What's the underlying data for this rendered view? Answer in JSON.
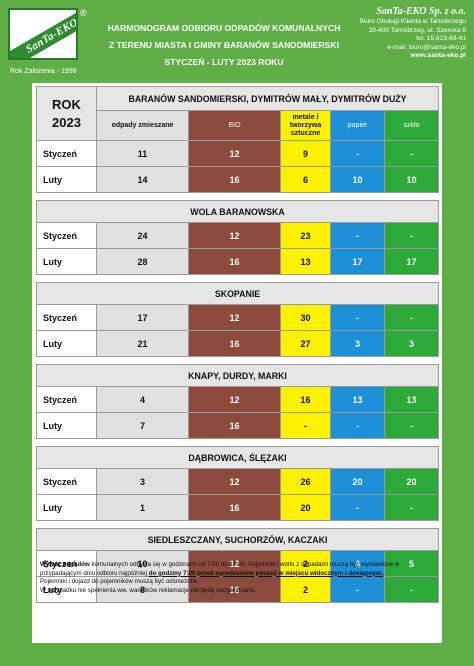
{
  "logo": {
    "brand": "SanTa-EKO",
    "registered": "®",
    "founded": "Rok Założenia - 1998"
  },
  "title": {
    "line1": "HARMONOGRAM ODBIORU ODPADÓW KOMUNALNYCH",
    "line2": "Z TERENU MIASTA I GMINY BARANÓW SANDOMIERSKI",
    "line3": "STYCZEŃ - LUTY 2023 ROKU"
  },
  "company": {
    "name": "SanTa-EKO Sp. z o.o.",
    "line1": "Biuro Obsługi Klienta w Tarnobrzegu",
    "line2": "39-400 Tarnobrzeg, ul. Szeroka 8",
    "line3": "tel. 15 823-69-41",
    "line4": "e-mail: biuro@santa-eko.pl",
    "url": "www.santa-eko.pl"
  },
  "table": {
    "year_label": "ROK",
    "year": "2023",
    "headers": {
      "mixed": "odpady zmieszane",
      "bio": "BIO",
      "metal": "metale i tworzywa sztuczne",
      "paper": "papier",
      "glass": "szkło"
    },
    "areas": [
      {
        "name": "BARANÓW SANDOMIERSKI, DYMITRÓW MAŁY, DYMITRÓW DUŻY",
        "rows": [
          {
            "month": "Styczeń",
            "mixed": "11",
            "bio": "12",
            "metal": "9",
            "paper": "-",
            "glass": "-"
          },
          {
            "month": "Luty",
            "mixed": "14",
            "bio": "16",
            "metal": "6",
            "paper": "10",
            "glass": "10"
          }
        ]
      },
      {
        "name": "WOLA BARANOWSKA",
        "rows": [
          {
            "month": "Styczeń",
            "mixed": "24",
            "bio": "12",
            "metal": "23",
            "paper": "-",
            "glass": "-"
          },
          {
            "month": "Luty",
            "mixed": "28",
            "bio": "16",
            "metal": "13",
            "paper": "17",
            "glass": "17"
          }
        ]
      },
      {
        "name": "SKOPANIE",
        "rows": [
          {
            "month": "Styczeń",
            "mixed": "17",
            "bio": "12",
            "metal": "30",
            "paper": "-",
            "glass": "-"
          },
          {
            "month": "Luty",
            "mixed": "21",
            "bio": "16",
            "metal": "27",
            "paper": "3",
            "glass": "3"
          }
        ]
      },
      {
        "name": "KNAPY, DURDY, MARKI",
        "rows": [
          {
            "month": "Styczeń",
            "mixed": "4",
            "bio": "12",
            "metal": "16",
            "paper": "13",
            "glass": "13"
          },
          {
            "month": "Luty",
            "mixed": "7",
            "bio": "16",
            "metal": "-",
            "paper": "-",
            "glass": "-"
          }
        ]
      },
      {
        "name": "DĄBROWICA, ŚLĘZAKI",
        "rows": [
          {
            "month": "Styczeń",
            "mixed": "3",
            "bio": "12",
            "metal": "26",
            "paper": "20",
            "glass": "20"
          },
          {
            "month": "Luty",
            "mixed": "1",
            "bio": "16",
            "metal": "20",
            "paper": "-",
            "glass": "-"
          }
        ]
      },
      {
        "name": "SIEDLESZCZANY, SUCHORZÓW, KACZAKI",
        "rows": [
          {
            "month": "Styczeń",
            "mixed": "10",
            "bio": "12",
            "metal": "2",
            "paper": "4",
            "glass": "5"
          },
          {
            "month": "Luty",
            "mixed": "8",
            "bio": "16",
            "metal": "2",
            "paper": "-",
            "glass": "-"
          }
        ]
      }
    ]
  },
  "notes": {
    "p1_bold": "Wywóz odpadów",
    "p1_text": " komunalnych odbywa się w godzinach od 7:00 do 17:00. Pojemniki i worki z odpadami muszą być wystawione w przypadającym dniu odbioru najpóźniej ",
    "p1_underline": "do godziny 7:00 przed ogrodzeniem posesji w miejscu widocznym i dostępnym.",
    "p2": "Pojemniki i dojazd do pojemników muszą być odśnieżone.",
    "p3": "W przypadku nie spełnienia ww. warunków reklamacje nie będą uwzględniane."
  },
  "colors": {
    "background": "#5fae46",
    "mixed": "#e1e1e1",
    "bio": "#8b4a3b",
    "metal": "#fff200",
    "paper": "#1e90d8",
    "glass": "#2eaa3a"
  }
}
